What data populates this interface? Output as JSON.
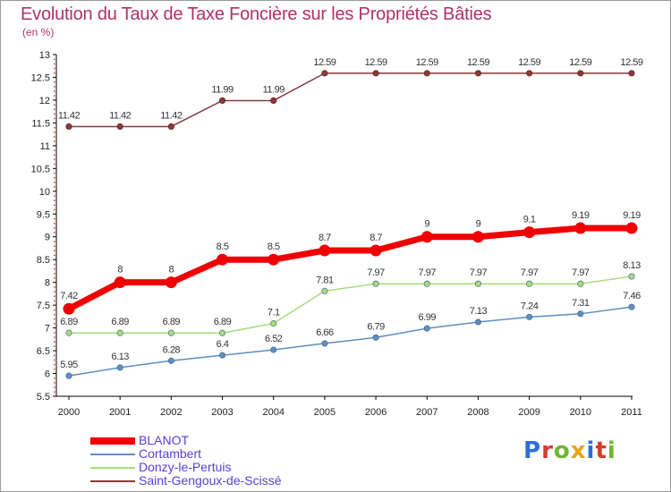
{
  "title": "Evolution du Taux de Taxe Foncière sur les Propriétés Bâties",
  "unit": "(en %)",
  "logo": {
    "text": "Proxiti",
    "colors": [
      "#2b6fd6",
      "#d93a2b",
      "#6cb82e",
      "#e6a417",
      "#2b6fd6",
      "#d93a2b",
      "#6cb82e"
    ]
  },
  "chart_data": {
    "type": "line",
    "x": [
      "2000",
      "2001",
      "2002",
      "2003",
      "2004",
      "2005",
      "2006",
      "2007",
      "2008",
      "2009",
      "2010",
      "2011"
    ],
    "ylim": [
      5.5,
      13
    ],
    "yticks": [
      "5.5",
      "6",
      "6.5",
      "7",
      "7.5",
      "8",
      "8.5",
      "9",
      "9.5",
      "10",
      "10.5",
      "11",
      "11.5",
      "12",
      "12.5",
      "13"
    ],
    "grid": false,
    "legend_position": "bottom-left",
    "series": [
      {
        "name": "BLANOT",
        "color": "#f00000",
        "values": [
          7.42,
          8,
          8,
          8.5,
          8.5,
          8.7,
          8.7,
          9,
          9,
          9.1,
          9.19,
          9.19
        ],
        "labels": [
          "7.42",
          "8",
          "8",
          "8.5",
          "8.5",
          "8.7",
          "8.7",
          "9",
          "9",
          "9.1",
          "9.19",
          "9.19"
        ]
      },
      {
        "name": "Cortambert",
        "color": "#5b8fc4",
        "values": [
          5.95,
          6.13,
          6.28,
          6.4,
          6.52,
          6.66,
          6.79,
          6.99,
          7.13,
          7.24,
          7.31,
          7.46
        ],
        "labels": [
          "5.95",
          "6.13",
          "6.28",
          "6.4",
          "6.52",
          "6.66",
          "6.79",
          "6.99",
          "7.13",
          "7.24",
          "7.31",
          "7.46"
        ]
      },
      {
        "name": "Donzy-le-Pertuis",
        "color": "#a6dd7a",
        "values": [
          6.89,
          6.89,
          6.89,
          6.89,
          7.1,
          7.81,
          7.97,
          7.97,
          7.97,
          7.97,
          7.97,
          8.13
        ],
        "labels": [
          "6.89",
          "6.89",
          "6.89",
          "6.89",
          "7.1",
          "7.81",
          "7.97",
          "7.97",
          "7.97",
          "7.97",
          "7.97",
          "8.13"
        ]
      },
      {
        "name": "Saint-Gengoux-de-Scissé",
        "color": "#8b3a3a",
        "values": [
          11.42,
          11.42,
          11.42,
          11.99,
          11.99,
          12.59,
          12.59,
          12.59,
          12.59,
          12.59,
          12.59,
          12.59
        ],
        "labels": [
          "11.42",
          "11.42",
          "11.42",
          "11.99",
          "11.99",
          "12.59",
          "12.59",
          "12.59",
          "12.59",
          "12.59",
          "12.59",
          "12.59"
        ]
      }
    ]
  }
}
